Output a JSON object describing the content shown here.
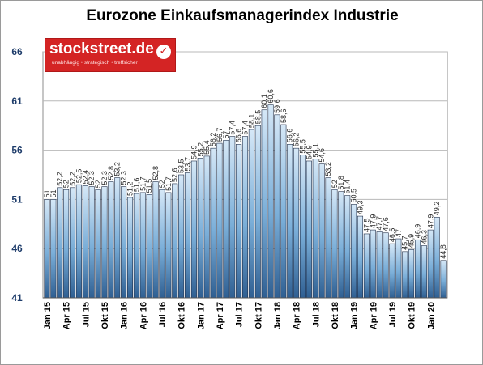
{
  "chart_data": {
    "type": "bar",
    "title": "Eurozone Einkaufsmanagerindex Industrie",
    "xlabel": "",
    "ylabel": "",
    "ylim": [
      41,
      66
    ],
    "yticks": [
      41,
      46,
      51,
      56,
      61,
      66
    ],
    "grid": true,
    "bar_color": "#7aaed8",
    "bar_edge_color": "#1f2f4a",
    "axis_tick_color": "#1f3d6b",
    "categories": [
      "Jan 15",
      "Feb 15",
      "Mär 15",
      "Apr 15",
      "Mai 15",
      "Jun 15",
      "Jul 15",
      "Aug 15",
      "Sep 15",
      "Okt 15",
      "Nov 15",
      "Dez 15",
      "Jan 16",
      "Feb 16",
      "Mär 16",
      "Apr 16",
      "Mai 16",
      "Jun 16",
      "Jul 16",
      "Aug 16",
      "Sep 16",
      "Okt 16",
      "Nov 16",
      "Dez 16",
      "Jan 17",
      "Feb 17",
      "Mär 17",
      "Apr 17",
      "Mai 17",
      "Jun 17",
      "Jul 17",
      "Aug 17",
      "Sep 17",
      "Okt 17",
      "Nov 17",
      "Dez 17",
      "Jan 18",
      "Feb 18",
      "Mär 18",
      "Apr 18",
      "Mai 18",
      "Jun 18",
      "Jul 18",
      "Aug 18",
      "Sep 18",
      "Okt 18",
      "Nov 18",
      "Dez 18",
      "Jan 19",
      "Feb 19",
      "Mär 19",
      "Apr 19",
      "Mai 19",
      "Jun 19",
      "Jul 19",
      "Aug 19",
      "Sep 19",
      "Okt 19",
      "Nov 19",
      "Dez 19",
      "Jan 20",
      "Feb 20",
      "Mär 20"
    ],
    "xtick_labels": [
      "Jan 15",
      "Apr 15",
      "Jul 15",
      "Okt 15",
      "Jan 16",
      "Apr 16",
      "Jul 16",
      "Okt 16",
      "Jan 17",
      "Apr 17",
      "Jul 17",
      "Okt 17",
      "Jan 18",
      "Apr 18",
      "Jul 18",
      "Okt 18",
      "Jan 19",
      "Apr 19",
      "Jul 19",
      "Okt 19",
      "Jan 20"
    ],
    "values": [
      51.0,
      51.0,
      52.2,
      52.0,
      52.2,
      52.5,
      52.4,
      52.3,
      52.0,
      52.3,
      52.8,
      53.2,
      52.3,
      51.2,
      51.6,
      51.7,
      51.5,
      52.8,
      52.0,
      51.7,
      52.6,
      53.5,
      53.7,
      54.9,
      55.2,
      55.4,
      56.2,
      56.7,
      57.0,
      57.4,
      56.6,
      57.4,
      58.1,
      58.5,
      60.1,
      60.6,
      59.6,
      58.6,
      56.6,
      56.2,
      55.5,
      54.9,
      55.1,
      54.6,
      53.2,
      52.0,
      51.8,
      51.4,
      50.5,
      49.3,
      47.5,
      47.9,
      47.7,
      47.6,
      46.5,
      47.0,
      45.7,
      45.9,
      46.9,
      46.3,
      47.9,
      49.2,
      44.8
    ],
    "value_labels": [
      "51",
      "51",
      "52,2",
      "52",
      "52,2",
      "52,5",
      "52,4",
      "52,3",
      "52",
      "52,3",
      "52,8",
      "53,2",
      "52,3",
      "51,2",
      "51,6",
      "51,7",
      "51,5",
      "52,8",
      "52",
      "51,7",
      "52,6",
      "53,5",
      "53,7",
      "54,9",
      "55,2",
      "55,4",
      "56,2",
      "56,7",
      "57",
      "57,4",
      "56,6",
      "57,4",
      "58,1",
      "58,5",
      "60,1",
      "60,6",
      "59,6",
      "58,6",
      "56,6",
      "56,2",
      "55,5",
      "54,9",
      "55,1",
      "54,6",
      "53,2",
      "52",
      "51,8",
      "51,4",
      "50,5",
      "49,3",
      "47,5",
      "47,9",
      "47,7",
      "47,6",
      "46,5",
      "47",
      "45,7",
      "45,9",
      "46,9",
      "46,3",
      "47,9",
      "49,2",
      "44,8"
    ]
  },
  "logo": {
    "brand": "stockstreet.de",
    "tagline": "unabhängig • strategisch • treffsicher",
    "check_icon": "✓"
  }
}
